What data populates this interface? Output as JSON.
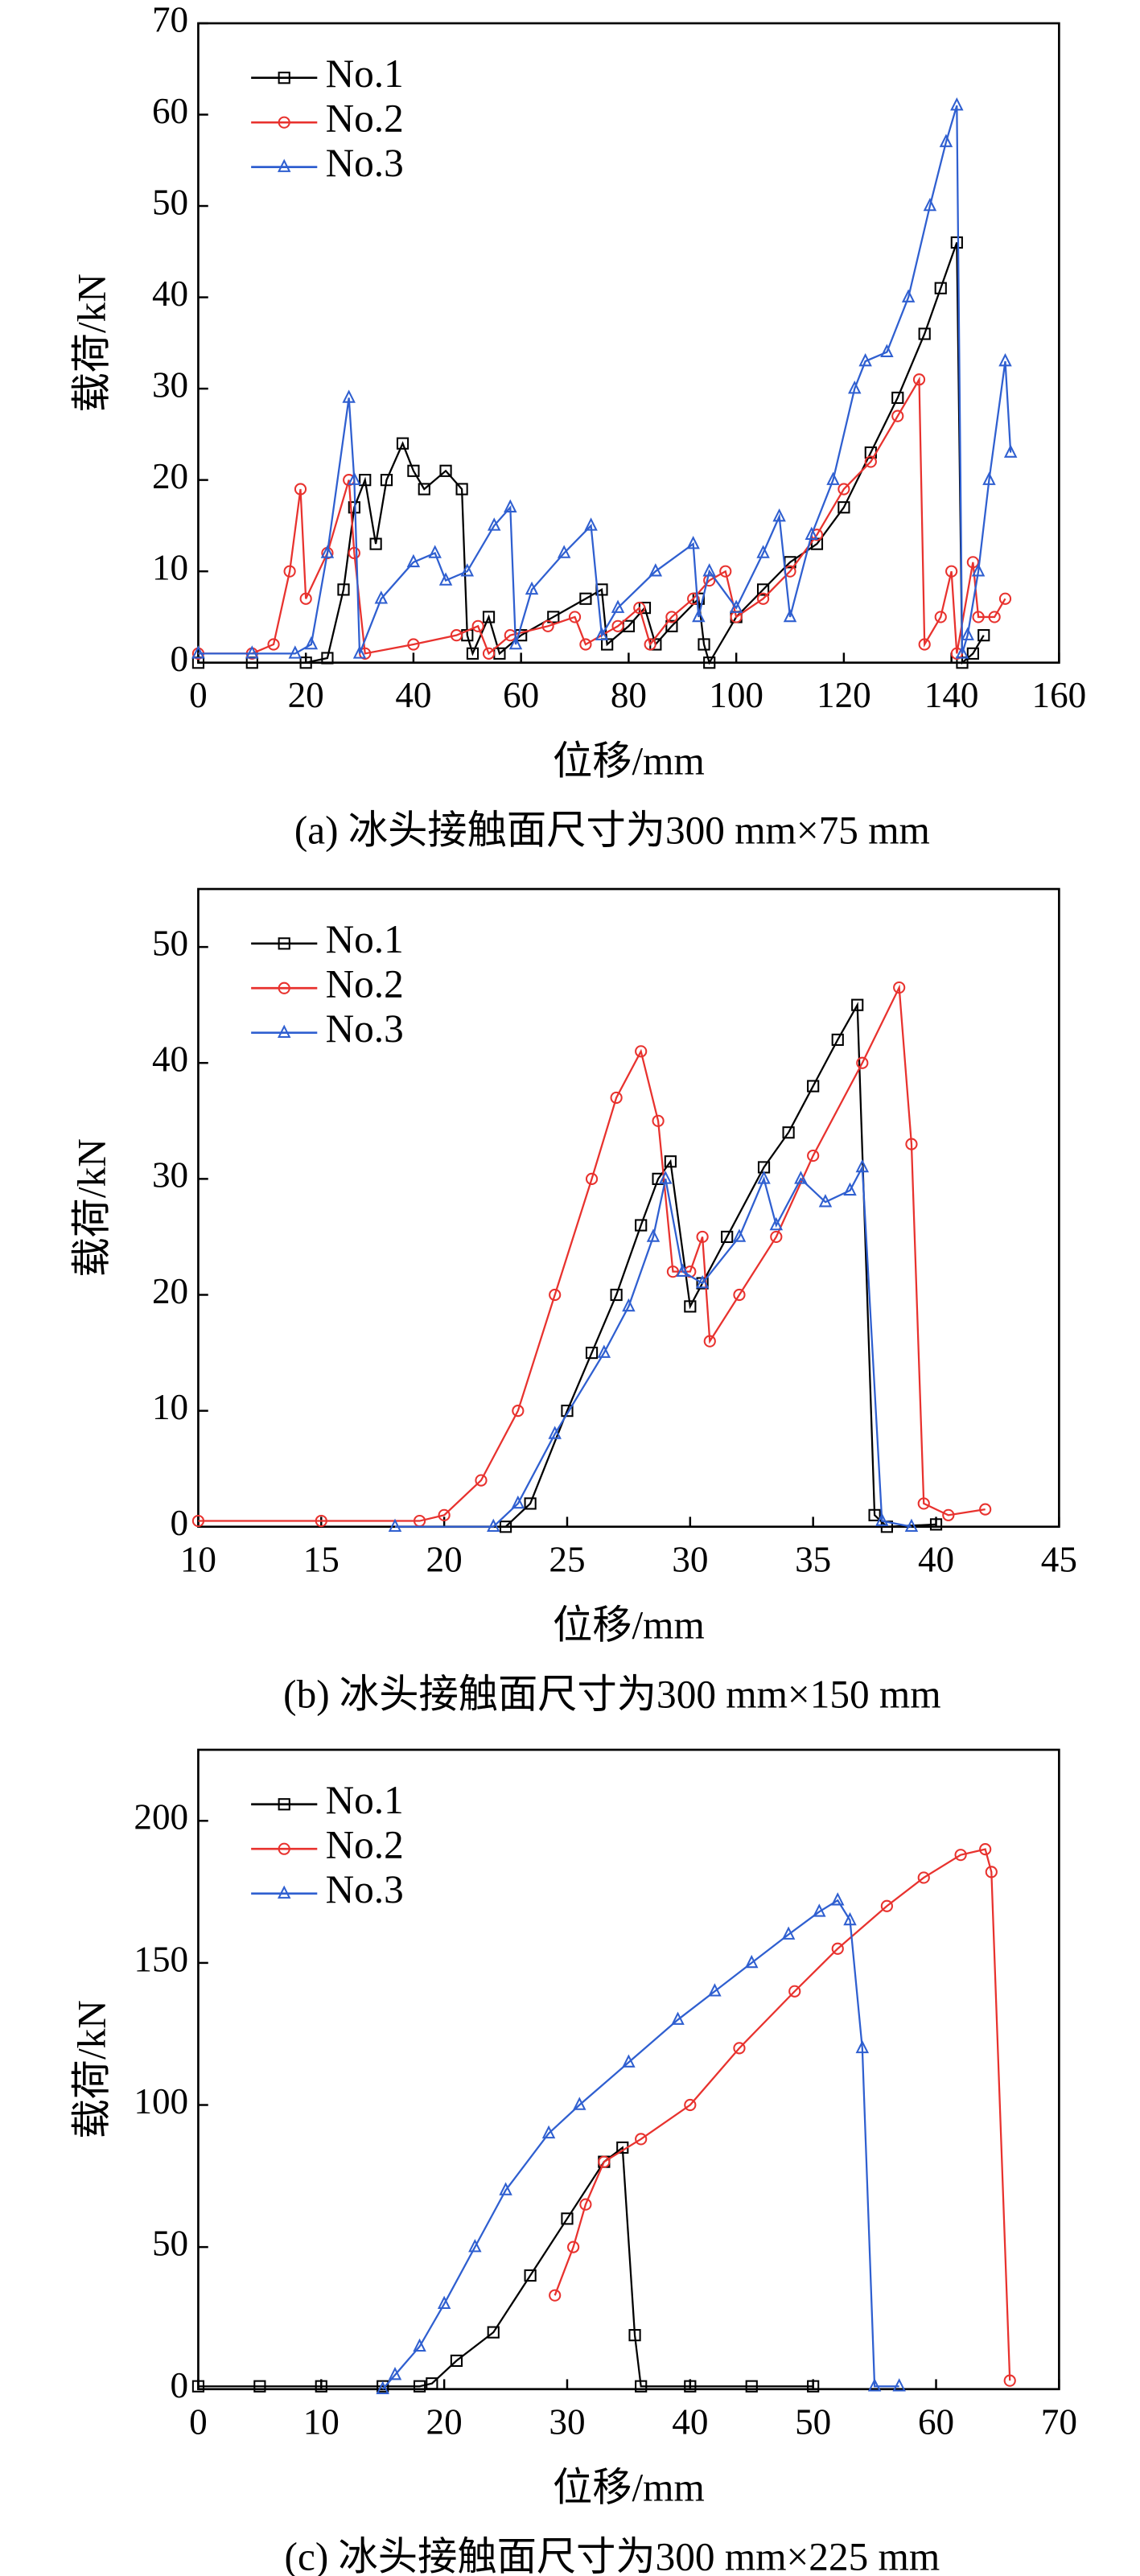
{
  "chart_data": [
    {
      "type": "line",
      "caption": "(a) 冰头接触面尺寸为300 mm×75 mm",
      "xlabel": "位移/mm",
      "ylabel": "载荷/kN",
      "xlim": [
        0,
        160
      ],
      "xticks": [
        0,
        20,
        40,
        60,
        80,
        100,
        120,
        140,
        160
      ],
      "ylim": [
        0,
        70
      ],
      "yticks": [
        0,
        10,
        20,
        30,
        40,
        50,
        60,
        70
      ],
      "legend": "upper left",
      "series": [
        {
          "name": "No.1",
          "color": "#000000",
          "marker": "square",
          "x": [
            0,
            10,
            20,
            24,
            27,
            29,
            31,
            33,
            35,
            38,
            40,
            42,
            46,
            49,
            50,
            51,
            54,
            56,
            60,
            66,
            72,
            75,
            76,
            80,
            83,
            85,
            88,
            93,
            94,
            95,
            100,
            105,
            110,
            115,
            120,
            125,
            130,
            135,
            138,
            141,
            142,
            144,
            146
          ],
          "values": [
            0,
            0,
            0,
            0.5,
            8,
            17,
            20,
            13,
            20,
            24,
            21,
            19,
            21,
            19,
            3,
            1,
            5,
            1,
            3,
            5,
            7,
            8,
            2,
            4,
            6,
            2,
            4,
            7,
            2,
            0,
            5,
            8,
            11,
            13,
            17,
            23,
            29,
            36,
            41,
            46,
            0,
            1,
            3
          ]
        },
        {
          "name": "No.2",
          "color": "#e8322e",
          "marker": "circle",
          "x": [
            0,
            10,
            14,
            17,
            19,
            20,
            24,
            28,
            29,
            31,
            40,
            48,
            52,
            54,
            58,
            65,
            70,
            72,
            78,
            82,
            84,
            88,
            92,
            95,
            98,
            100,
            105,
            110,
            115,
            120,
            125,
            130,
            134,
            135,
            138,
            140,
            141,
            144,
            145,
            148,
            150
          ],
          "values": [
            1,
            1,
            2,
            10,
            19,
            7,
            12,
            20,
            12,
            1,
            2,
            3,
            4,
            1,
            3,
            4,
            5,
            2,
            4,
            6,
            2,
            5,
            7,
            9,
            10,
            5,
            7,
            10,
            14,
            19,
            22,
            27,
            31,
            2,
            5,
            10,
            1,
            11,
            5,
            5,
            7
          ]
        },
        {
          "name": "No.3",
          "color": "#2f5fd0",
          "marker": "triangle",
          "x": [
            0,
            10,
            18,
            21,
            24,
            28,
            29,
            30,
            34,
            40,
            44,
            46,
            50,
            55,
            58,
            59,
            62,
            68,
            73,
            75,
            78,
            85,
            92,
            93,
            95,
            100,
            105,
            108,
            110,
            114,
            118,
            122,
            124,
            128,
            132,
            136,
            139,
            141,
            142,
            143,
            145,
            147,
            150,
            151
          ],
          "values": [
            1,
            1,
            1,
            2,
            12,
            29,
            20,
            1,
            7,
            11,
            12,
            9,
            10,
            15,
            17,
            2,
            8,
            12,
            15,
            3,
            6,
            10,
            13,
            5,
            10,
            6,
            12,
            16,
            5,
            14,
            20,
            30,
            33,
            34,
            40,
            50,
            57,
            61,
            1,
            3,
            10,
            20,
            33,
            23
          ]
        }
      ]
    },
    {
      "type": "line",
      "caption": "(b) 冰头接触面尺寸为300 mm×150 mm",
      "xlabel": "位移/mm",
      "ylabel": "载荷/kN",
      "xlim": [
        10,
        45
      ],
      "xticks": [
        10,
        15,
        20,
        25,
        30,
        35,
        40,
        45
      ],
      "ylim": [
        0,
        55
      ],
      "yticks": [
        0,
        10,
        20,
        30,
        40,
        50
      ],
      "legend": "upper left",
      "series": [
        {
          "name": "No.1",
          "color": "#000000",
          "marker": "square",
          "x": [
            22.5,
            23.5,
            25,
            26,
            27,
            28,
            28.7,
            29.2,
            30,
            30.5,
            31.5,
            33,
            34,
            35,
            36,
            36.8,
            37.5,
            38,
            40
          ],
          "values": [
            0,
            2,
            10,
            15,
            20,
            26,
            30,
            31.5,
            19,
            21,
            25,
            31,
            34,
            38,
            42,
            45,
            1,
            0,
            0.2
          ]
        },
        {
          "name": "No.2",
          "color": "#e8322e",
          "marker": "circle",
          "x": [
            10,
            15,
            19,
            20,
            21.5,
            23,
            24.5,
            26,
            27,
            28,
            28.7,
            29.3,
            30,
            30.5,
            30.8,
            32,
            33.5,
            35,
            37,
            38.5,
            39,
            39.5,
            40.5,
            42
          ],
          "values": [
            0.5,
            0.5,
            0.5,
            1,
            4,
            10,
            20,
            30,
            37,
            41,
            35,
            22,
            22,
            25,
            16,
            20,
            25,
            32,
            40,
            46.5,
            33,
            2,
            1,
            1.5
          ]
        },
        {
          "name": "No.3",
          "color": "#2f5fd0",
          "marker": "triangle",
          "x": [
            18,
            22,
            23,
            24.5,
            26.5,
            27.5,
            28.5,
            29,
            29.7,
            30.5,
            32,
            33,
            33.5,
            34.5,
            35.5,
            36.5,
            37,
            37.8,
            39
          ],
          "values": [
            0,
            0,
            2,
            8,
            15,
            19,
            25,
            30,
            22,
            21,
            25,
            30,
            26,
            30,
            28,
            29,
            31,
            0.5,
            0
          ]
        }
      ]
    },
    {
      "type": "line",
      "caption": "(c) 冰头接触面尺寸为300 mm×225 mm",
      "xlabel": "位移/mm",
      "ylabel": "载荷/kN",
      "xlim": [
        0,
        70
      ],
      "xticks": [
        0,
        10,
        20,
        30,
        40,
        50,
        60,
        70
      ],
      "ylim": [
        0,
        225
      ],
      "yticks": [
        0,
        50,
        100,
        150,
        200
      ],
      "legend": "upper left",
      "series": [
        {
          "name": "No.1",
          "color": "#000000",
          "marker": "square",
          "x": [
            0,
            5,
            10,
            15,
            18,
            19,
            21,
            24,
            27,
            30,
            33,
            34.5,
            35.5,
            36,
            40,
            45,
            50
          ],
          "values": [
            1,
            1,
            1,
            1,
            1,
            2,
            10,
            20,
            40,
            60,
            80,
            85,
            19,
            1,
            1,
            1,
            1
          ]
        },
        {
          "name": "No.2",
          "color": "#e8322e",
          "marker": "circle",
          "x": [
            29,
            30.5,
            31.5,
            33,
            36,
            40,
            44,
            48.5,
            52,
            56,
            59,
            62,
            64,
            64.5,
            66
          ],
          "values": [
            33,
            50,
            65,
            80,
            88,
            100,
            120,
            140,
            155,
            170,
            180,
            188,
            190,
            182,
            3
          ]
        },
        {
          "name": "No.3",
          "color": "#2f5fd0",
          "marker": "triangle",
          "x": [
            15,
            16,
            18,
            20,
            22.5,
            25,
            28.5,
            31,
            35,
            39,
            42,
            45,
            48,
            50.5,
            52,
            53,
            54,
            55,
            57
          ],
          "values": [
            0,
            5,
            15,
            30,
            50,
            70,
            90,
            100,
            115,
            130,
            140,
            150,
            160,
            168,
            172,
            165,
            120,
            1,
            1
          ]
        }
      ]
    }
  ]
}
